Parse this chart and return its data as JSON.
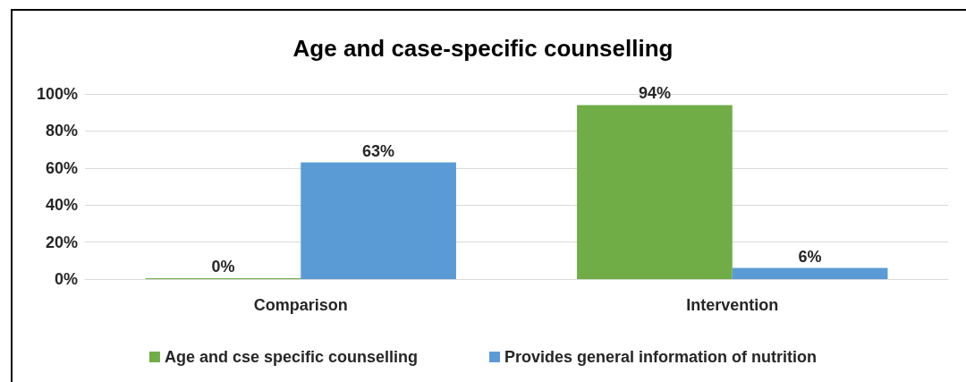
{
  "chart_data": {
    "type": "bar",
    "title": "Age and case-specific counselling",
    "categories": [
      "Comparison",
      "Intervention"
    ],
    "series": [
      {
        "name": "Age and cse specific counselling",
        "color": "#70ad47",
        "values": [
          0,
          94
        ],
        "value_labels": [
          "0%",
          "94%"
        ]
      },
      {
        "name": "Provides general information of nutrition",
        "color": "#5b9bd5",
        "values": [
          63,
          6
        ],
        "value_labels": [
          "63%",
          "6%"
        ]
      }
    ],
    "ylim": [
      0,
      100
    ],
    "yticks": [
      {
        "value": 0,
        "label": "0%"
      },
      {
        "value": 20,
        "label": "20%"
      },
      {
        "value": 40,
        "label": "40%"
      },
      {
        "value": 60,
        "label": "60%"
      },
      {
        "value": 80,
        "label": "80%"
      },
      {
        "value": 100,
        "label": "100%"
      }
    ],
    "grid": "y",
    "legend": "bottom"
  }
}
